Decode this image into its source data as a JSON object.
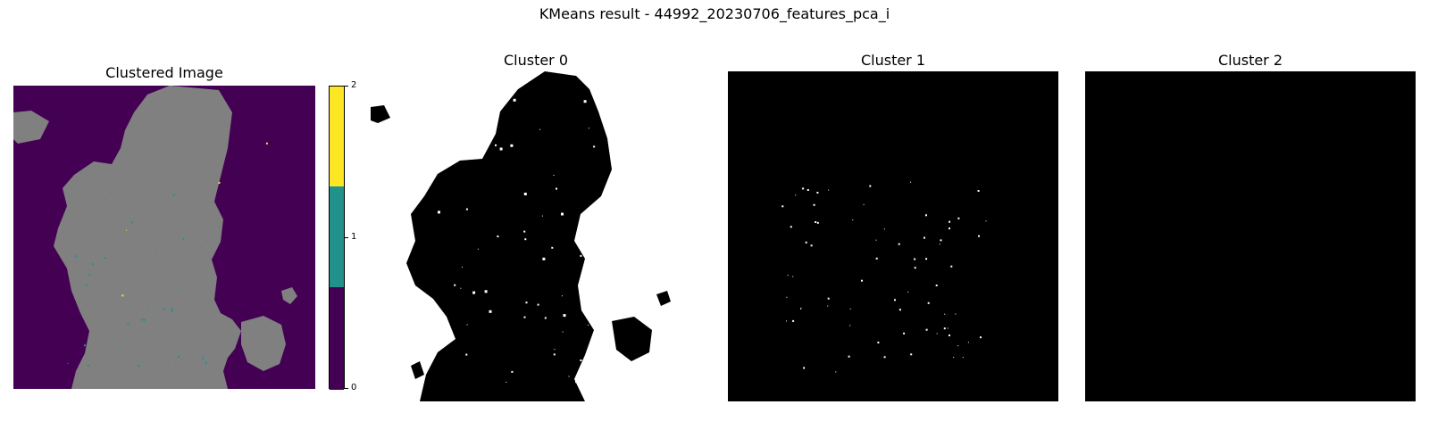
{
  "figure": {
    "title": "KMeans result - 44992_20230706_features_pca_i"
  },
  "chart_data": [
    {
      "type": "heatmap",
      "title": "Clustered Image",
      "colormap": "viridis",
      "visible_colors": {
        "0": "#440154",
        "1": "#21918c",
        "2": "#fde725",
        "masked": "#808080"
      },
      "colorbar": {
        "range": [
          0,
          2
        ],
        "ticks": [
          "0",
          "1",
          "2"
        ]
      },
      "axes": "off"
    },
    {
      "type": "heatmap",
      "title": "Cluster 0",
      "colors": {
        "member": "#ffffff",
        "other": "#000000"
      },
      "axes": "off"
    },
    {
      "type": "heatmap",
      "title": "Cluster 1",
      "colors": {
        "member": "#ffffff",
        "other": "#000000"
      },
      "axes": "off"
    },
    {
      "type": "heatmap",
      "title": "Cluster 2",
      "colors": {
        "member": "#ffffff",
        "other": "#000000"
      },
      "axes": "off"
    }
  ]
}
